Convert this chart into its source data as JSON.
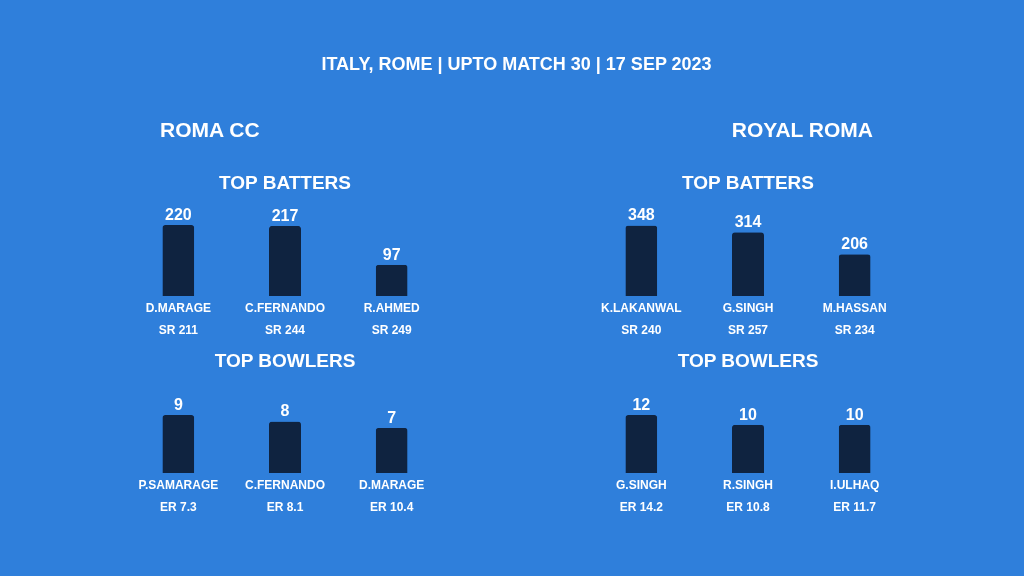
{
  "chart_data": [
    {
      "type": "bar",
      "title": "TOP BATTERS",
      "subtitle": "ROMA CC",
      "annotations": [
        "ITALY, ROME | UPTO MATCH 30 | 17 SEP 2023"
      ],
      "categories": [
        "D.MARAGE\nSR 211",
        "C.FERNANDO\nSR 244",
        "R.AHMED\nSR 249"
      ],
      "series": [
        {
          "color": "#0f2340",
          "values": [
            220,
            217,
            97
          ]
        }
      ],
      "data_labels": true
    },
    {
      "type": "bar",
      "title": "TOP BATTERS",
      "subtitle": "ROYAL ROMA",
      "categories": [
        "K.LAKANWAL\nSR 240",
        "G.SINGH\nSR 257",
        "M.HASSAN\nSR 234"
      ],
      "series": [
        {
          "color": "#0f2340",
          "values": [
            348,
            314,
            206
          ]
        }
      ],
      "data_labels": true
    },
    {
      "type": "bar",
      "title": "TOP BOWLERS",
      "categories": [
        "P.SAMARAGE\nER 7.3",
        "C.FERNANDO\nER 8.1",
        "D.MARAGE\nER 10.4"
      ],
      "series": [
        {
          "color": "#0f2340",
          "values": [
            9,
            8,
            7
          ]
        }
      ],
      "data_labels": true
    },
    {
      "type": "bar",
      "title": "TOP BOWLERS",
      "categories": [
        "G.SINGH\nER 14.2",
        "R.SINGH\nER 10.8",
        "I.ULHAQ\nER 11.7"
      ],
      "series": [
        {
          "color": "#0f2340",
          "values": [
            12,
            10,
            10
          ]
        }
      ],
      "data_labels": true
    }
  ]
}
